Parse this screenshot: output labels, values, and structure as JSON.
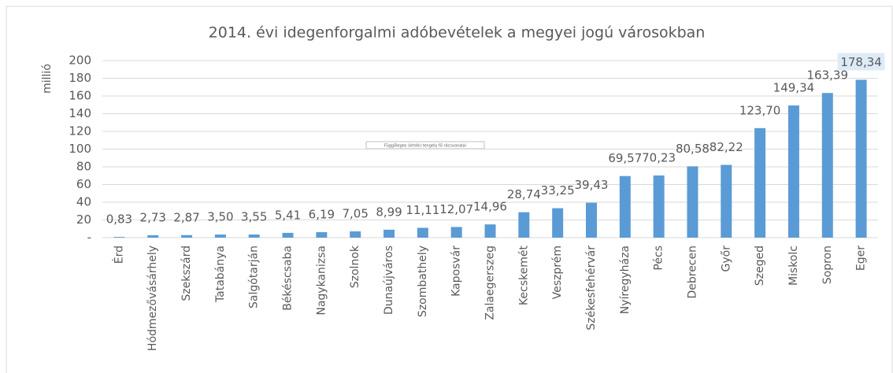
{
  "chart_data": {
    "type": "bar",
    "title": "2014. évi idegenforgalmi adóbevételek a megyei jogú városokban",
    "y_label": "millió",
    "annotation": "Függőleges (érték) tengely fő rácsvonalai",
    "categories": [
      "Érd",
      "Hódmezővásárhely",
      "Szekszárd",
      "Tatabánya",
      "Salgótarján",
      "Békéscsaba",
      "Nagykanizsa",
      "Szolnok",
      "Dunaújváros",
      "Szombathely",
      "Kaposvár",
      "Zalaegerszeg",
      "Kecskemét",
      "Veszprém",
      "Székesfehérvár",
      "Nyíregyháza",
      "Pécs",
      "Debrecen",
      "Győr",
      "Szeged",
      "Miskolc",
      "Sopron",
      "Eger"
    ],
    "values": [
      0.83,
      2.73,
      2.87,
      3.5,
      3.55,
      5.41,
      6.19,
      7.05,
      8.99,
      11.11,
      12.07,
      14.96,
      28.74,
      33.25,
      39.43,
      69.57,
      70.23,
      80.58,
      82.22,
      123.7,
      149.34,
      163.39,
      178.34
    ],
    "value_labels": [
      "0,83",
      "2,73",
      "2,87",
      "3,50",
      "3,55",
      "5,41",
      "6,19",
      "7,05",
      "8,99",
      "11,11",
      "12,07",
      "14,96",
      "28,74",
      "33,25",
      "39,43",
      "69,57",
      "70,23",
      "80,58",
      "82,22",
      "123,70",
      "149,34",
      "163,39",
      "178,34"
    ],
    "color": "#5b9bd5",
    "ylim": [
      0,
      200
    ],
    "yticks": [
      {
        "value": 0,
        "label": "-"
      },
      20,
      40,
      60,
      80,
      100,
      120,
      140,
      160,
      180,
      200
    ],
    "grid": true
  }
}
